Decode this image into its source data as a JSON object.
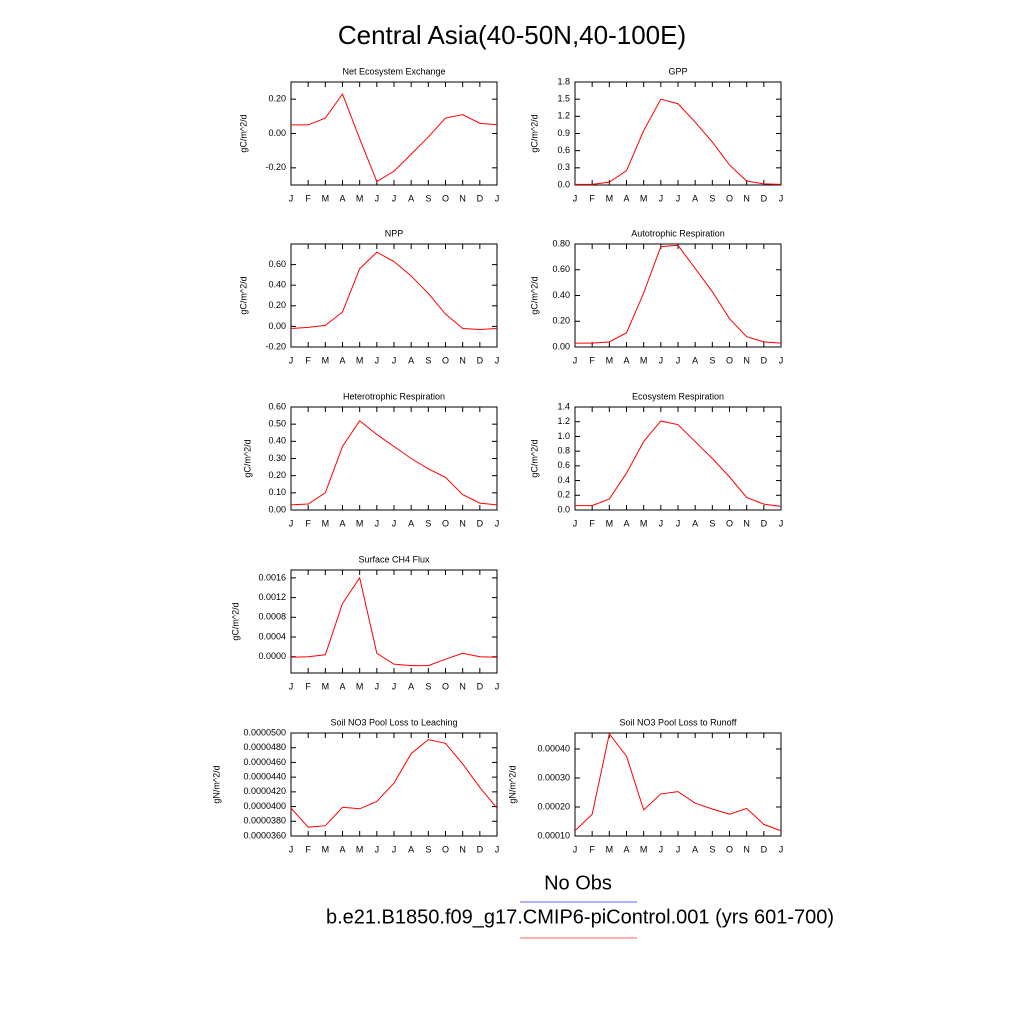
{
  "title": "Central Asia(40-50N,40-100E)",
  "legend": [
    {
      "name": "No Obs",
      "color": "#8080ff"
    },
    {
      "name": "b.e21.B1850.f09_g17.CMIP6-piControl.001 (yrs 601-700)",
      "color": "#ff8080"
    }
  ],
  "chart_data": [
    {
      "type": "line",
      "title": "Net Ecosystem Exchange",
      "ylabel": "gC/m^2/d",
      "color": "#ff0000",
      "categories": [
        "J",
        "F",
        "M",
        "A",
        "M",
        "J",
        "J",
        "A",
        "S",
        "O",
        "N",
        "D",
        "J"
      ],
      "values": [
        0.05,
        0.05,
        0.09,
        0.23,
        -0.03,
        -0.28,
        -0.22,
        -0.12,
        -0.02,
        0.09,
        0.11,
        0.06,
        0.05
      ],
      "ylim": [
        -0.3,
        0.3
      ],
      "yticks": [
        {
          "value": -0.2,
          "label": "-0.20"
        },
        {
          "value": 0,
          "label": "0.00"
        },
        {
          "value": 0.2,
          "label": "0.20"
        }
      ]
    },
    {
      "type": "line",
      "title": "GPP",
      "ylabel": "gC/m^2/d",
      "color": "#ff0000",
      "categories": [
        "J",
        "F",
        "M",
        "A",
        "M",
        "J",
        "J",
        "A",
        "S",
        "O",
        "N",
        "D",
        "J"
      ],
      "values": [
        0.01,
        0.01,
        0.05,
        0.25,
        0.95,
        1.5,
        1.42,
        1.1,
        0.75,
        0.35,
        0.07,
        0.02,
        0.01
      ],
      "ylim": [
        0,
        1.8
      ],
      "yticks": [
        {
          "value": 0,
          "label": "0.0"
        },
        0.3,
        0.6,
        0.9,
        1.2,
        1.5,
        1.8
      ]
    },
    {
      "type": "line",
      "title": "NPP",
      "ylabel": "gC/m^2/d",
      "color": "#ff0000",
      "categories": [
        "J",
        "F",
        "M",
        "A",
        "M",
        "J",
        "J",
        "A",
        "S",
        "O",
        "N",
        "D",
        "J"
      ],
      "values": [
        -0.02,
        -0.01,
        0.01,
        0.14,
        0.56,
        0.72,
        0.63,
        0.49,
        0.32,
        0.12,
        -0.02,
        -0.03,
        -0.02
      ],
      "ylim": [
        -0.2,
        0.8
      ],
      "yticks": [
        {
          "value": -0.2,
          "label": "-0.20"
        },
        {
          "value": 0,
          "label": "0.00"
        },
        {
          "value": 0.2,
          "label": "0.20"
        },
        {
          "value": 0.4,
          "label": "0.40"
        },
        {
          "value": 0.6,
          "label": "0.60"
        }
      ]
    },
    {
      "type": "line",
      "title": "Autotrophic Respiration",
      "ylabel": "gC/m^2/d",
      "color": "#ff0000",
      "categories": [
        "J",
        "F",
        "M",
        "A",
        "M",
        "J",
        "J",
        "A",
        "S",
        "O",
        "N",
        "D",
        "J"
      ],
      "values": [
        0.03,
        0.03,
        0.04,
        0.11,
        0.42,
        0.78,
        0.79,
        0.61,
        0.43,
        0.22,
        0.08,
        0.04,
        0.03
      ],
      "ylim": [
        0,
        0.8
      ],
      "yticks": [
        {
          "value": 0,
          "label": "0.00"
        },
        {
          "value": 0.2,
          "label": "0.20"
        },
        {
          "value": 0.4,
          "label": "0.40"
        },
        {
          "value": 0.6,
          "label": "0.60"
        },
        {
          "value": 0.8,
          "label": "0.80"
        }
      ]
    },
    {
      "type": "line",
      "title": "Heterotrophic Respiration",
      "ylabel": "gC/m^2/d",
      "color": "#ff0000",
      "categories": [
        "J",
        "F",
        "M",
        "A",
        "M",
        "J",
        "J",
        "A",
        "S",
        "O",
        "N",
        "D",
        "J"
      ],
      "values": [
        0.03,
        0.035,
        0.1,
        0.37,
        0.52,
        0.44,
        0.37,
        0.3,
        0.24,
        0.19,
        0.09,
        0.04,
        0.03
      ],
      "ylim": [
        0,
        0.6
      ],
      "yticks": [
        {
          "value": 0,
          "label": "0.00"
        },
        {
          "value": 0.1,
          "label": "0.10"
        },
        {
          "value": 0.2,
          "label": "0.20"
        },
        {
          "value": 0.3,
          "label": "0.30"
        },
        {
          "value": 0.4,
          "label": "0.40"
        },
        {
          "value": 0.5,
          "label": "0.50"
        },
        {
          "value": 0.6,
          "label": "0.60"
        }
      ]
    },
    {
      "type": "line",
      "title": "Ecosystem Respiration",
      "ylabel": "gC/m^2/d",
      "color": "#ff0000",
      "categories": [
        "J",
        "F",
        "M",
        "A",
        "M",
        "J",
        "J",
        "A",
        "S",
        "O",
        "N",
        "D",
        "J"
      ],
      "values": [
        0.06,
        0.06,
        0.15,
        0.5,
        0.93,
        1.21,
        1.16,
        0.93,
        0.7,
        0.45,
        0.17,
        0.08,
        0.05
      ],
      "ylim": [
        0,
        1.4
      ],
      "yticks": [
        {
          "value": 0,
          "label": "0.0"
        },
        0.2,
        0.4,
        0.6,
        0.8,
        {
          "value": 1,
          "label": "1.0"
        },
        1.2,
        1.4
      ]
    },
    {
      "type": "line",
      "title": "Surface CH4 Flux",
      "ylabel": "gC/m^2/d",
      "color": "#ff0000",
      "categories": [
        "J",
        "F",
        "M",
        "A",
        "M",
        "J",
        "J",
        "A",
        "S",
        "O",
        "N",
        "D",
        "J"
      ],
      "values": [
        -1e-05,
        0,
        4e-05,
        0.00108,
        0.0016,
        7e-05,
        -0.00015,
        -0.00018,
        -0.00018,
        -5e-05,
        7e-05,
        0,
        -1e-05
      ],
      "ylim": [
        -0.00033,
        0.00176
      ],
      "yticks": [
        {
          "value": 0,
          "label": "0.0000"
        },
        {
          "value": 0.0004,
          "label": "0.0004"
        },
        {
          "value": 0.0008,
          "label": "0.0008"
        },
        {
          "value": 0.0012,
          "label": "0.0012"
        },
        {
          "value": 0.0016,
          "label": "0.0016"
        }
      ]
    },
    {
      "type": "line",
      "title": "Soil NO3 Pool Loss to Leaching",
      "ylabel": "gN/m^2/d",
      "color": "#ff0000",
      "categories": [
        "J",
        "F",
        "M",
        "A",
        "M",
        "J",
        "J",
        "A",
        "S",
        "O",
        "N",
        "D",
        "J"
      ],
      "values": [
        3.98e-05,
        3.72e-05,
        3.74e-05,
        3.99e-05,
        3.97e-05,
        4.07e-05,
        4.32e-05,
        4.72e-05,
        4.91e-05,
        4.86e-05,
        4.58e-05,
        4.26e-05,
        3.98e-05
      ],
      "ylim": [
        3.6e-05,
        5e-05
      ],
      "yticks": [
        {
          "value": 3.6e-05,
          "label": "0.0000360"
        },
        {
          "value": 3.8e-05,
          "label": "0.0000380"
        },
        {
          "value": 4e-05,
          "label": "0.0000400"
        },
        {
          "value": 4.2e-05,
          "label": "0.0000420"
        },
        {
          "value": 4.4e-05,
          "label": "0.0000440"
        },
        {
          "value": 4.6e-05,
          "label": "0.0000460"
        },
        {
          "value": 4.8e-05,
          "label": "0.0000480"
        },
        {
          "value": 5e-05,
          "label": "0.0000500"
        }
      ]
    },
    {
      "type": "line",
      "title": "Soil NO3 Pool Loss to Runoff",
      "ylabel": "gN/m^2/d",
      "color": "#ff0000",
      "categories": [
        "J",
        "F",
        "M",
        "A",
        "M",
        "J",
        "J",
        "A",
        "S",
        "O",
        "N",
        "D",
        "J"
      ],
      "values": [
        0.000118,
        0.000175,
        0.000452,
        0.000375,
        0.00019,
        0.000245,
        0.000253,
        0.000213,
        0.000193,
        0.000175,
        0.000195,
        0.00014,
        0.000118
      ],
      "ylim": [
        0.0001,
        0.000455
      ],
      "yticks": [
        {
          "value": 0.0001,
          "label": "0.00010"
        },
        {
          "value": 0.0002,
          "label": "0.00020"
        },
        {
          "value": 0.0003,
          "label": "0.00030"
        },
        {
          "value": 0.0004,
          "label": "0.00040"
        }
      ]
    }
  ]
}
